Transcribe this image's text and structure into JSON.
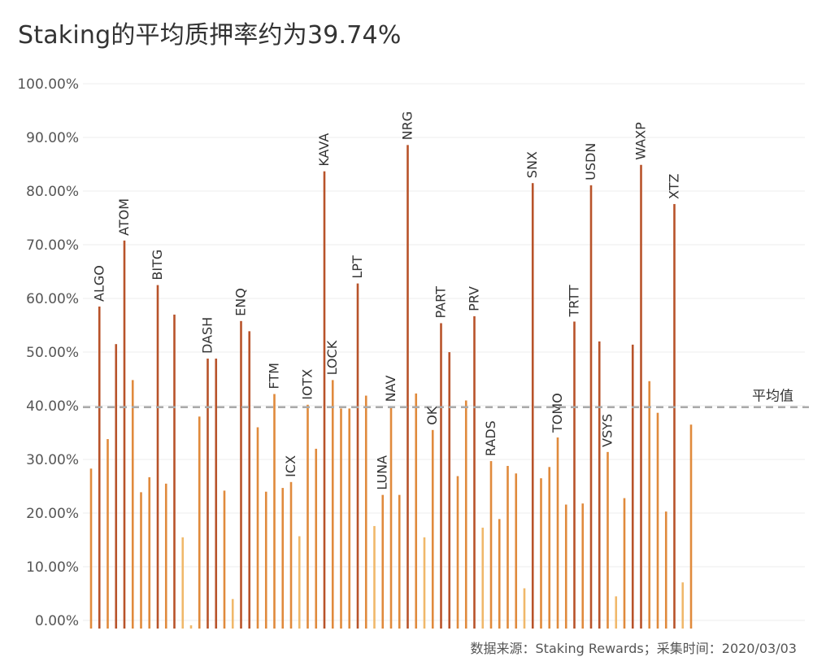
{
  "title": "Staking的平均质押率约为39.74%",
  "source": "数据来源：Staking Rewards；采集时间：2020/03/03",
  "average_label": "平均值",
  "colors": {
    "dark": "#b8532a",
    "mid": "#e08a3c",
    "light": "#f0b86a",
    "average": "#aaaaaa",
    "grid": "#eeeeee"
  },
  "chart_data": {
    "type": "bar",
    "title": "Staking的平均质押率约为39.74%",
    "ylim": [
      0,
      100
    ],
    "y_ticks": [
      "0.00%",
      "10.00%",
      "20.00%",
      "30.00%",
      "40.00%",
      "50.00%",
      "60.00%",
      "70.00%",
      "80.00%",
      "90.00%",
      "100.00%"
    ],
    "average": 39.74,
    "grid": true,
    "values": [
      29.8,
      60,
      35.3,
      53,
      72.3,
      46.3,
      25.4,
      28.2,
      64,
      27,
      58.5,
      17,
      0.6,
      39.5,
      50.3,
      50.3,
      25.7,
      5.5,
      57.3,
      55.4,
      37.5,
      25.5,
      43.7,
      26.2,
      27.3,
      17.2,
      41.7,
      33.5,
      85.2,
      46.3,
      41,
      41,
      64.3,
      43.4,
      19.1,
      24.9,
      41.3,
      24.9,
      90.1,
      43.8,
      17,
      37,
      56.9,
      51.5,
      28.4,
      42.5,
      58.2,
      18.8,
      31.2,
      20.4,
      30.3,
      28.9,
      7.5,
      83,
      28,
      30.1,
      35.6,
      23.1,
      57.2,
      23.3,
      82.6,
      53.5,
      32.9,
      6,
      24.3,
      52.9,
      86.4,
      46.1,
      40.2,
      21.8,
      79.1,
      8.6,
      38
    ],
    "labels": [
      "",
      "ALGO",
      "",
      "",
      "ATOM",
      "",
      "",
      "",
      "BITG",
      "",
      "",
      "",
      "",
      "",
      "DASH",
      "",
      "",
      "",
      "ENQ",
      "",
      "",
      "",
      "FTM",
      "",
      "ICX",
      "",
      "IOTX",
      "",
      "KAVA",
      "LOCK",
      "",
      "",
      "LPT",
      "",
      "",
      "LUNA",
      "NAV",
      "",
      "NRG",
      "",
      "",
      "OK",
      "PART",
      "",
      "",
      "",
      "PRV",
      "",
      "RADS",
      "",
      "",
      "",
      "",
      "SNX",
      "",
      "",
      "TOMO",
      "",
      "TRTT",
      "",
      "USDN",
      "",
      "VSYS",
      "",
      "",
      "",
      "WAXP",
      "",
      "",
      "",
      "XTZ",
      "",
      ""
    ]
  }
}
